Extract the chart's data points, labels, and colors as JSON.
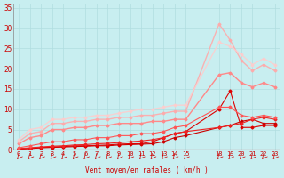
{
  "xlabel": "Vent moyen/en rafales ( km/h )",
  "bg_color": "#c8eef0",
  "grid_color": "#b0dde0",
  "x_vals": [
    0,
    1,
    2,
    3,
    4,
    5,
    6,
    7,
    8,
    9,
    10,
    11,
    12,
    13,
    14,
    15,
    18,
    19,
    20,
    21,
    22,
    23
  ],
  "yticks": [
    0,
    5,
    10,
    15,
    20,
    25,
    30,
    35
  ],
  "ylim": [
    0,
    36
  ],
  "series": [
    {
      "color": "#cc0000",
      "alpha": 1.0,
      "lw": 0.8,
      "marker": "D",
      "ms": 1.5,
      "y": [
        0.2,
        0.3,
        0.5,
        0.6,
        0.7,
        0.8,
        0.9,
        1.0,
        1.0,
        1.2,
        1.3,
        1.4,
        1.5,
        2.0,
        3.0,
        3.5,
        5.5,
        6.0,
        7.0,
        7.5,
        6.5,
        6.5
      ]
    },
    {
      "color": "#dd0000",
      "alpha": 1.0,
      "lw": 0.8,
      "marker": "D",
      "ms": 1.5,
      "y": [
        0.2,
        0.4,
        0.6,
        0.7,
        0.8,
        1.0,
        1.0,
        1.1,
        1.2,
        1.4,
        1.5,
        1.5,
        2.0,
        3.0,
        4.0,
        4.5,
        10.0,
        14.5,
        5.5,
        5.5,
        6.0,
        6.0
      ]
    },
    {
      "color": "#ee2222",
      "alpha": 1.0,
      "lw": 0.8,
      "marker": "D",
      "ms": 1.5,
      "y": [
        0.3,
        0.5,
        0.7,
        0.9,
        1.0,
        1.2,
        1.3,
        1.5,
        1.6,
        1.8,
        2.0,
        2.2,
        2.5,
        3.0,
        4.0,
        4.5,
        5.5,
        6.0,
        6.5,
        7.5,
        8.0,
        7.5
      ]
    },
    {
      "color": "#ff5555",
      "alpha": 1.0,
      "lw": 0.8,
      "marker": "D",
      "ms": 1.5,
      "y": [
        0.5,
        1.0,
        1.5,
        2.0,
        2.0,
        2.5,
        2.5,
        3.0,
        3.0,
        3.5,
        3.5,
        4.0,
        4.0,
        4.5,
        5.5,
        6.0,
        10.5,
        10.5,
        8.5,
        8.0,
        8.5,
        8.0
      ]
    },
    {
      "color": "#ff8888",
      "alpha": 1.0,
      "lw": 1.0,
      "marker": "D",
      "ms": 1.5,
      "y": [
        1.5,
        3.0,
        3.5,
        5.0,
        5.0,
        5.5,
        5.5,
        6.0,
        6.0,
        6.5,
        6.5,
        6.5,
        7.0,
        7.0,
        7.5,
        7.5,
        18.5,
        19.0,
        16.5,
        15.5,
        16.5,
        15.5
      ]
    },
    {
      "color": "#ffaaaa",
      "alpha": 0.9,
      "lw": 1.0,
      "marker": "D",
      "ms": 1.5,
      "y": [
        2.0,
        4.0,
        4.5,
        6.5,
        6.5,
        7.0,
        7.0,
        7.5,
        7.5,
        8.0,
        8.0,
        8.5,
        8.5,
        9.0,
        9.5,
        9.5,
        31.0,
        27.0,
        22.0,
        19.5,
        21.0,
        19.5
      ]
    },
    {
      "color": "#ffcccc",
      "alpha": 0.85,
      "lw": 1.0,
      "marker": "D",
      "ms": 1.5,
      "y": [
        2.5,
        5.0,
        5.5,
        7.5,
        7.5,
        8.0,
        8.0,
        8.5,
        8.5,
        9.0,
        9.5,
        10.0,
        10.0,
        10.5,
        11.0,
        11.0,
        26.5,
        25.5,
        23.5,
        21.0,
        22.5,
        21.0
      ]
    }
  ]
}
